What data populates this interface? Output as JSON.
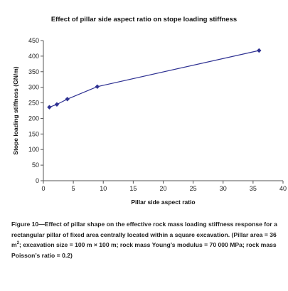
{
  "chart_data": {
    "type": "line",
    "title": "Effect of pillar side aspect ratio on stope loading stiffness",
    "xlabel": "Pillar side aspect ratio",
    "ylabel": "Stope loading stiffness (GN/m)",
    "xlim": [
      0,
      40
    ],
    "ylim": [
      0,
      450
    ],
    "xticks": [
      0,
      5,
      10,
      15,
      20,
      25,
      30,
      35,
      40
    ],
    "yticks": [
      0,
      50,
      100,
      150,
      200,
      250,
      300,
      350,
      400,
      450
    ],
    "grid": false,
    "legend": "none",
    "series": [
      {
        "color": "#2e3192",
        "marker": "diamond",
        "x": [
          1,
          2.25,
          4,
          9,
          36
        ],
        "y": [
          236,
          245,
          262,
          302,
          418
        ]
      }
    ]
  },
  "caption": {
    "before_sup": "Figure 10—Effect of pillar shape on the effective rock mass loading stiffness response for a rectangular pillar of fixed area centrally located within a square excavation. (Pillar area = 36 m",
    "sup": "2",
    "after_sup": "; excavation size = 100 m × 100 m; rock mass Young’s modulus = 70 000 MPa; rock mass Poisson’s ratio = 0.2)"
  }
}
